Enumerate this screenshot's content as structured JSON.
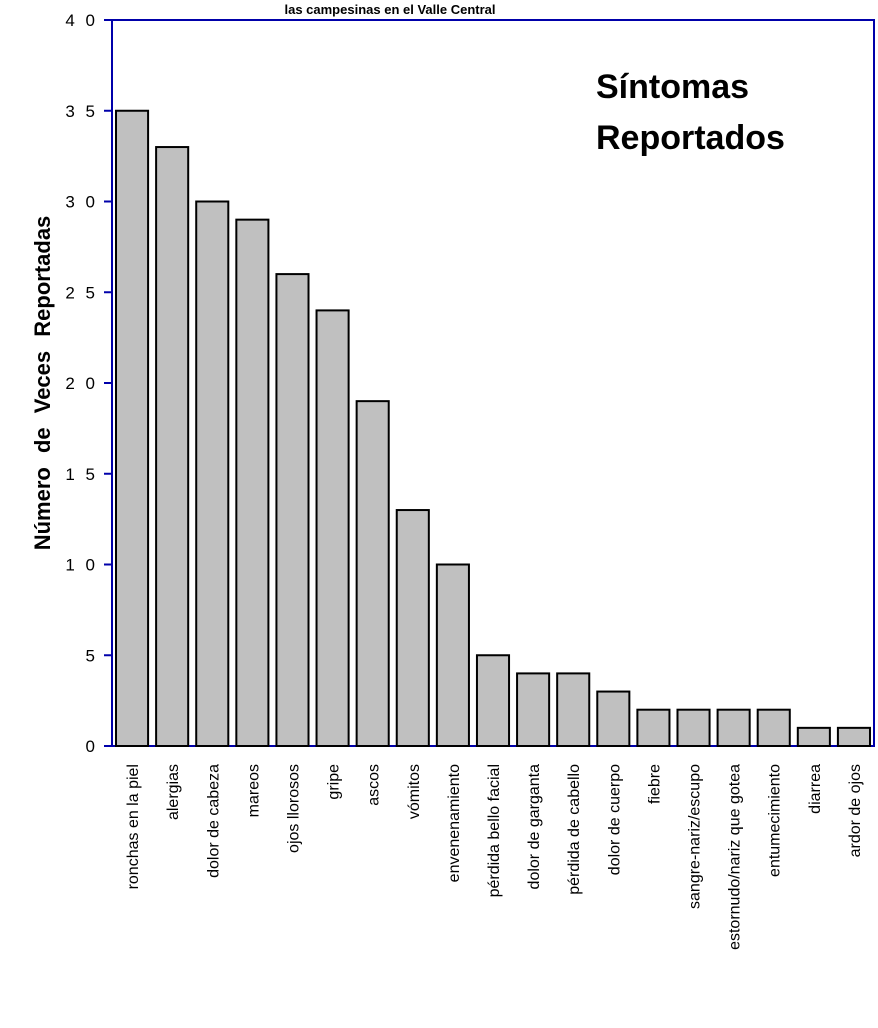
{
  "chart_data": {
    "type": "bar",
    "title_fragment": "las campesinas en el Valle Central",
    "title_lines": [
      "Síntomas",
      "Reportados"
    ],
    "xlabel": "",
    "ylabel": "Número de Veces Reportadas",
    "ylim": [
      0,
      40
    ],
    "yticks": [
      "0",
      "5",
      "1 0",
      "1 5",
      "2 0",
      "2 5",
      "3 0",
      "3 5",
      "4 0"
    ],
    "yticks_values": [
      0,
      5,
      10,
      15,
      20,
      25,
      30,
      35,
      40
    ],
    "grid": false,
    "categories": [
      "ronchas en la piel",
      "alergias",
      "dolor de cabeza",
      "mareos",
      "ojos  llorosos",
      "gripe",
      "ascos",
      "vómitos",
      "envenenamiento",
      "pérdida bello facial",
      "dolor de garganta",
      "pérdida de cabello",
      "dolor de cuerpo",
      "fiebre",
      "sangre-nariz/escupo",
      "estornudo/nariz que gotea",
      "entumecimiento",
      "diarrea",
      "ardor de ojos"
    ],
    "values": [
      35,
      33,
      30,
      29,
      26,
      24,
      19,
      13,
      10,
      5,
      4,
      4,
      3,
      2,
      2,
      2,
      2,
      1,
      1
    ],
    "colors": {
      "bar_fill": "#c0c0c0",
      "bar_stroke": "#000000",
      "axis": "#0000aa"
    }
  }
}
